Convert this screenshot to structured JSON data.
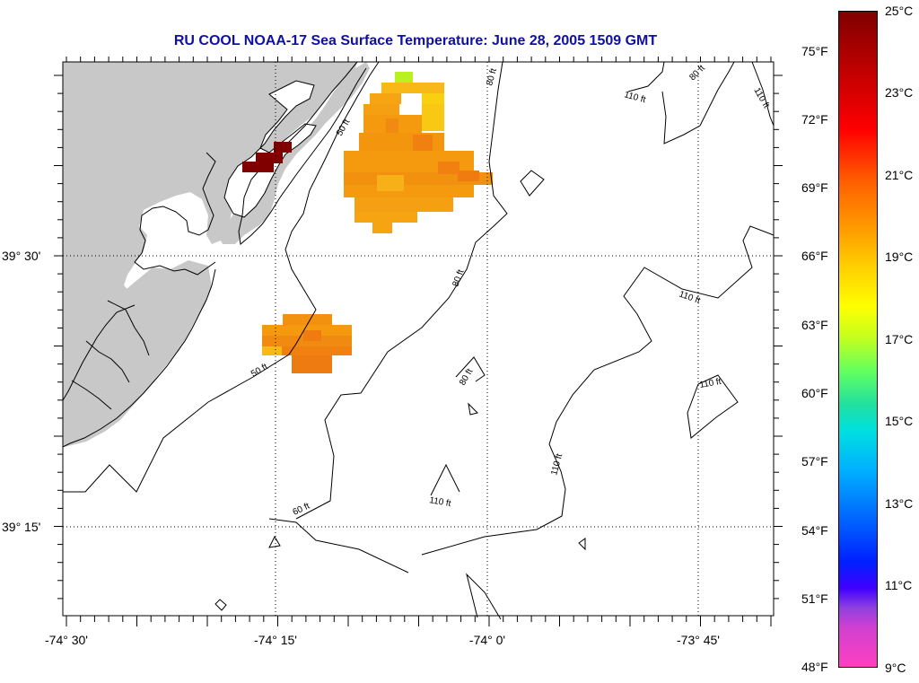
{
  "title": "RU COOL  NOAA-17  Sea Surface Temperature:  June 28, 2005 1509 GMT",
  "lon_labels": [
    "-74° 30'",
    "-74° 15'",
    "-74° 0'",
    "-73° 45'"
  ],
  "lat_labels": [
    "39° 30'",
    "39° 15'"
  ],
  "contour_labels": {
    "c110a": "110 ft",
    "c110b": "110 ft",
    "c110c": "110 ft",
    "c110d": "110 ft",
    "c110e": "110 ft",
    "c110f": "110 ft",
    "c80a": "80 ft",
    "c80b": "80 ft",
    "c80c": "80 ft",
    "c80d": "80 ft",
    "c60a": "60 ft",
    "c50a": "50 ft",
    "c50b": "50 ft"
  },
  "colorbar": {
    "fahrenheit": [
      "75°F",
      "72°F",
      "69°F",
      "66°F",
      "63°F",
      "60°F",
      "57°F",
      "54°F",
      "51°F",
      "48°F"
    ],
    "celsius": [
      "25°C",
      "23°C",
      "21°C",
      "19°C",
      "17°C",
      "15°C",
      "13°C",
      "11°C",
      "9°C"
    ]
  },
  "colors": {
    "land": "#c8c8c8",
    "sst_warm": "#f59a0f",
    "sst_orange": "#f08010",
    "sst_yellow": "#f8c010",
    "sst_dark": "#800000",
    "title": "#1010a0"
  }
}
